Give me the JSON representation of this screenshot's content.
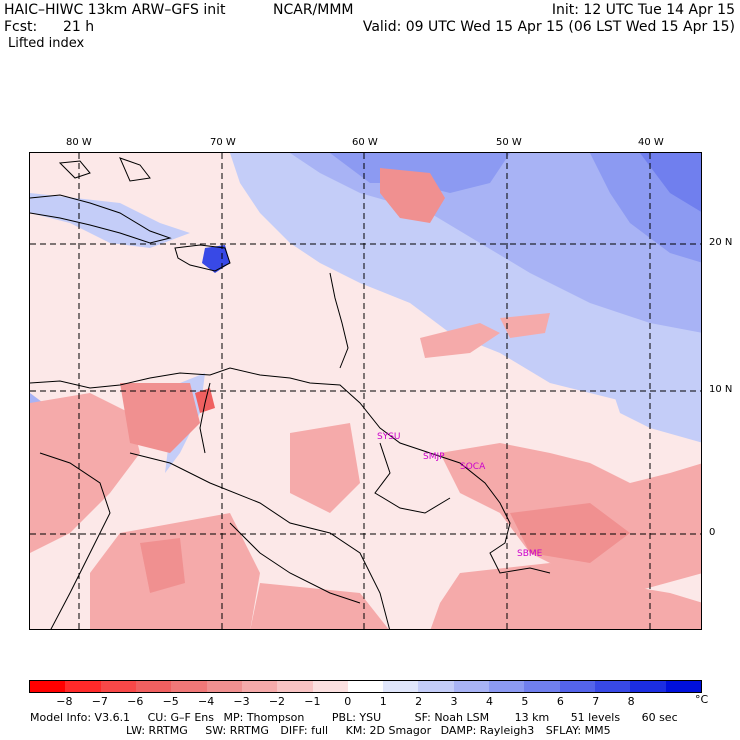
{
  "header": {
    "model_title": "HAIC–HIWC 13km ARW–GFS init",
    "org": "NCAR/MMM",
    "init": "Init: 12 UTC Tue 14 Apr 15",
    "fcst_label": "Fcst:",
    "fcst_value": "21 h",
    "valid": "Valid: 09 UTC Wed 15 Apr 15 (06 LST Wed 15 Apr 15)",
    "field": "Lifted index"
  },
  "map": {
    "lon_labels": [
      "80 W",
      "70 W",
      "60 W",
      "50 W",
      "40 W"
    ],
    "lat_labels": [
      "20 N",
      "10 N",
      "0"
    ],
    "stations": [
      "SYSU",
      "SMJP",
      "SOCA",
      "SBME"
    ]
  },
  "colorbar": {
    "labels": [
      "−8",
      "−7",
      "−6",
      "−5",
      "−4",
      "−3",
      "−2",
      "−1",
      "0",
      "1",
      "2",
      "3",
      "4",
      "5",
      "6",
      "7",
      "8"
    ],
    "unit": "°C",
    "colors": [
      "#ff0000",
      "#ff2a2a",
      "#f84848",
      "#f06060",
      "#f07878",
      "#f09090",
      "#f5aaaa",
      "#f8c4c4",
      "#fbe0e0",
      "#ffffff",
      "#e0e6fb",
      "#c4cdf8",
      "#a8b3f5",
      "#8c9af2",
      "#707fee",
      "#5464ea",
      "#3849e6",
      "#1c2ee2",
      "#0010dd"
    ]
  },
  "footer": {
    "line1": [
      "Model Info: V3.6.1",
      "CU: G–F Ens",
      "MP: Thompson",
      "PBL: YSU",
      "SF: Noah LSM",
      "13 km",
      "51 levels",
      "60 sec"
    ],
    "line2": [
      "LW: RRTMG",
      "SW: RRTMG",
      "DIFF: full",
      "KM: 2D Smagor",
      "DAMP: Rayleigh3",
      "SFLAY: MM5"
    ]
  }
}
